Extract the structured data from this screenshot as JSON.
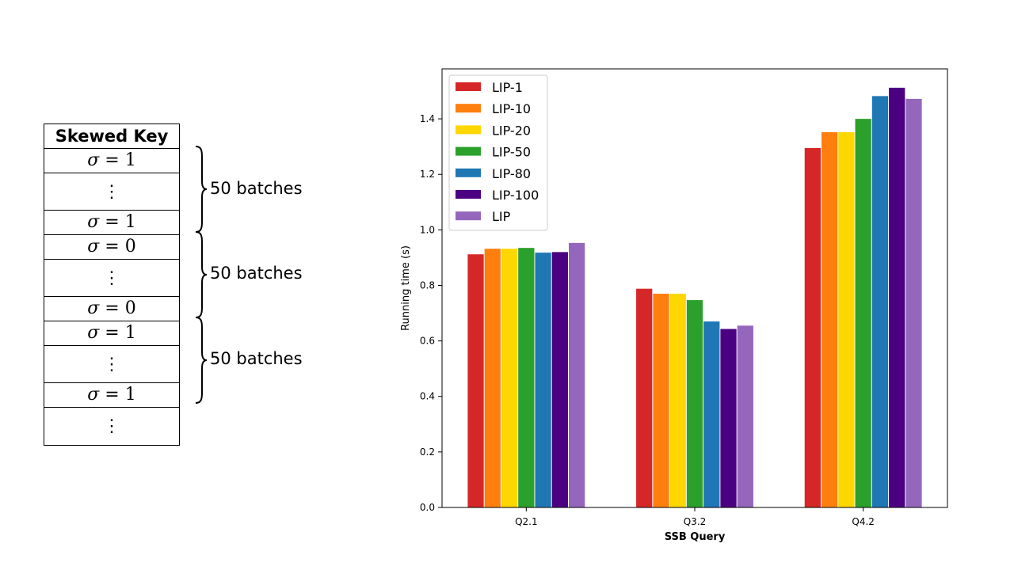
{
  "left_panel": {
    "header": "Skewed Key",
    "rows": [
      {
        "kind": "sigma",
        "symbol": "σ",
        "equals": " = ",
        "value": "1"
      },
      {
        "kind": "dots",
        "text": "⋮"
      },
      {
        "kind": "sigma",
        "symbol": "σ",
        "equals": " = ",
        "value": "1"
      },
      {
        "kind": "sigma",
        "symbol": "σ",
        "equals": " = ",
        "value": "0"
      },
      {
        "kind": "dots",
        "text": "⋮"
      },
      {
        "kind": "sigma",
        "symbol": "σ",
        "equals": " = ",
        "value": "0"
      },
      {
        "kind": "sigma",
        "symbol": "σ",
        "equals": " = ",
        "value": "1"
      },
      {
        "kind": "dots",
        "text": "⋮"
      },
      {
        "kind": "sigma",
        "symbol": "σ",
        "equals": " = ",
        "value": "1"
      },
      {
        "kind": "dots",
        "text": "⋮"
      }
    ],
    "batch_labels": [
      "50 batches",
      "50 batches",
      "50 batches"
    ]
  },
  "chart_data": {
    "type": "bar",
    "title": "",
    "xlabel": "SSB Query",
    "ylabel": "Running time (s)",
    "categories": [
      "Q2.1",
      "Q3.2",
      "Q4.2"
    ],
    "ylim": [
      0,
      1.58
    ],
    "yticks": [
      0.0,
      0.2,
      0.4,
      0.6,
      0.8,
      1.0,
      1.2,
      1.4
    ],
    "legend_position": "top-left",
    "grid": false,
    "series": [
      {
        "name": "LIP-1",
        "color": "#d62728",
        "values": [
          0.912,
          0.788,
          1.295
        ]
      },
      {
        "name": "LIP-10",
        "color": "#ff7f0e",
        "values": [
          0.932,
          0.77,
          1.352
        ]
      },
      {
        "name": "LIP-20",
        "color": "#ffd700",
        "values": [
          0.932,
          0.77,
          1.352
        ]
      },
      {
        "name": "LIP-50",
        "color": "#2ca02c",
        "values": [
          0.935,
          0.747,
          1.4
        ]
      },
      {
        "name": "LIP-80",
        "color": "#1f77b4",
        "values": [
          0.918,
          0.67,
          1.482
        ]
      },
      {
        "name": "LIP-100",
        "color": "#4b0082",
        "values": [
          0.92,
          0.643,
          1.512
        ]
      },
      {
        "name": "LIP",
        "color": "#9467bd",
        "values": [
          0.953,
          0.655,
          1.472
        ]
      }
    ]
  }
}
